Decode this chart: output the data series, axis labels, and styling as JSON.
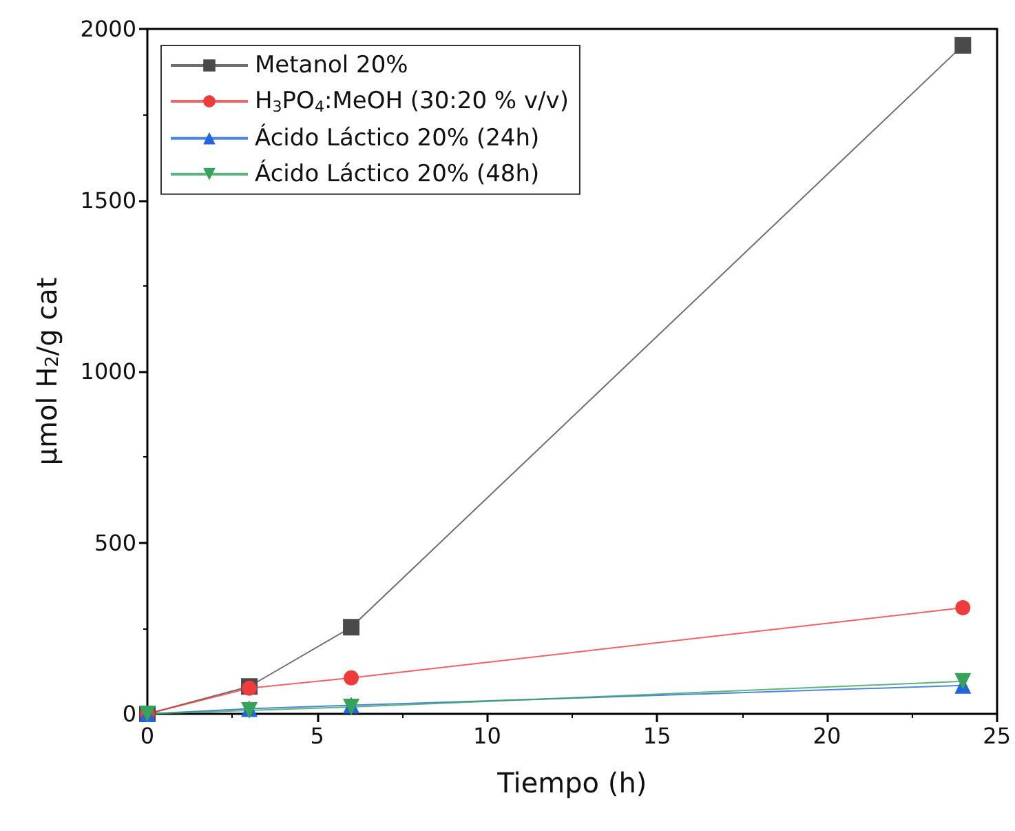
{
  "chart_data": {
    "type": "line",
    "xlabel": "Tiempo (h)",
    "ylabel": "μmol H$_{2}$/g cat",
    "x": [
      0,
      3,
      6,
      24
    ],
    "series": [
      {
        "name": "Metanol 20%",
        "color": "#4a4a4a",
        "marker": "square",
        "values": [
          0,
          80,
          253,
          1952
        ]
      },
      {
        "name": "H$_{3}$PO$_{4}$:MeOH (30:20 % v/v)",
        "color": "#ee3b3b",
        "marker": "circle",
        "values": [
          0,
          75,
          105,
          310
        ]
      },
      {
        "name": "Ácido Láctico 20% (24h)",
        "color": "#1f66dd",
        "marker": "triangle",
        "values": [
          0,
          15,
          25,
          83
        ]
      },
      {
        "name": "Ácido Láctico 20% (48h)",
        "color": "#35a35a",
        "marker": "triangle-down",
        "values": [
          0,
          10,
          20,
          95
        ]
      }
    ],
    "xlim": [
      0,
      25
    ],
    "xticks": [
      0,
      5,
      10,
      15,
      20,
      25
    ],
    "ylim": [
      0,
      2000
    ],
    "yticks": [
      0,
      500,
      1000,
      1500,
      2000
    ],
    "grid": false,
    "legend": "top left",
    "line_style": "solid"
  }
}
